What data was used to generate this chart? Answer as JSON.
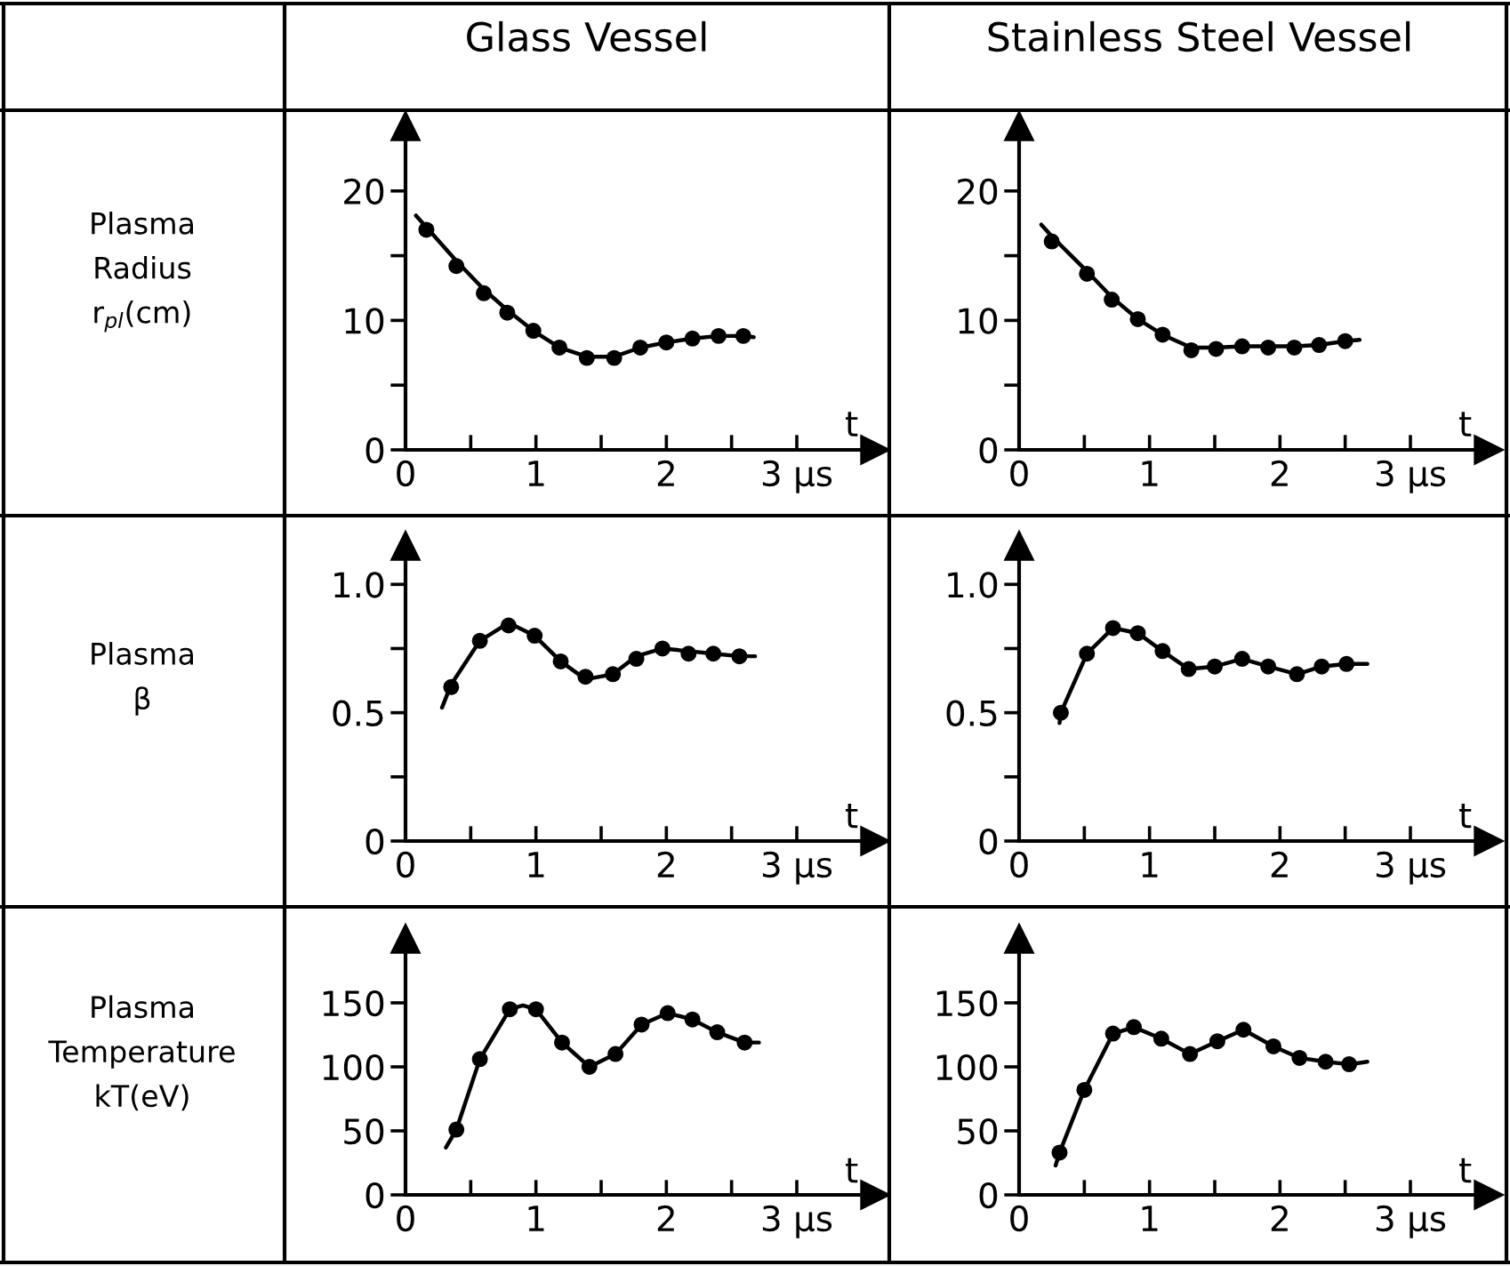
{
  "chart_data": [
    {
      "type": "line",
      "title": "Glass Vessel",
      "ylabel": "Plasma\nRadius\nr$_{pl}$(cm)",
      "xlabel": "t",
      "xlim": [
        0,
        3.6
      ],
      "xticks": [
        0,
        {
          "value": 0.5,
          "label": null
        },
        1,
        {
          "value": 1.5,
          "label": null
        },
        2,
        {
          "value": 2.5,
          "label": null
        },
        {
          "value": 3,
          "label": "3 μs"
        }
      ],
      "ylim": [
        0,
        25
      ],
      "yticks": [
        0,
        {
          "value": 5,
          "label": null
        },
        10,
        {
          "value": 15,
          "label": null
        },
        20
      ],
      "grid": false,
      "series": [
        {
          "type": "line",
          "color": "#000000",
          "marker": "none",
          "x": [
            0.08,
            0.16,
            0.39,
            0.6,
            0.78,
            0.98,
            1.18,
            1.39,
            1.6,
            1.8,
            2.0,
            2.2,
            2.4,
            2.59,
            2.67
          ],
          "values": [
            18.1,
            17.2,
            14.6,
            12.4,
            10.8,
            9.2,
            7.9,
            7.2,
            7.2,
            7.9,
            8.3,
            8.6,
            8.8,
            8.8,
            8.7
          ]
        },
        {
          "type": "scatter",
          "color": "#000000",
          "marker": "circle",
          "x": [
            0.16,
            0.39,
            0.6,
            0.78,
            0.98,
            1.18,
            1.39,
            1.6,
            1.8,
            2.0,
            2.2,
            2.4,
            2.59
          ],
          "values": [
            17.0,
            14.2,
            12.1,
            10.6,
            9.2,
            7.9,
            7.1,
            7.1,
            7.9,
            8.3,
            8.6,
            8.8,
            8.8
          ]
        }
      ]
    },
    {
      "type": "line",
      "title": "Stainless Steel Vessel",
      "xlabel": "t",
      "xlim": [
        0,
        3.6
      ],
      "xticks": [
        0,
        {
          "value": 0.5,
          "label": null
        },
        1,
        {
          "value": 1.5,
          "label": null
        },
        2,
        {
          "value": 2.5,
          "label": null
        },
        {
          "value": 3,
          "label": "3 μs"
        }
      ],
      "ylim": [
        0,
        25
      ],
      "yticks": [
        0,
        {
          "value": 5,
          "label": null
        },
        10,
        {
          "value": 15,
          "label": null
        },
        20
      ],
      "grid": false,
      "series": [
        {
          "type": "line",
          "color": "#000000",
          "marker": "none",
          "x": [
            0.17,
            0.25,
            0.52,
            0.71,
            0.91,
            1.1,
            1.32,
            1.51,
            1.71,
            1.91,
            2.11,
            2.3,
            2.5,
            2.61
          ],
          "values": [
            17.4,
            16.5,
            13.8,
            11.8,
            10.1,
            8.9,
            7.9,
            7.9,
            8.0,
            8.0,
            8.0,
            8.1,
            8.4,
            8.5
          ]
        },
        {
          "type": "scatter",
          "color": "#000000",
          "marker": "circle",
          "x": [
            0.25,
            0.52,
            0.71,
            0.91,
            1.1,
            1.32,
            1.51,
            1.71,
            1.91,
            2.11,
            2.3,
            2.5
          ],
          "values": [
            16.1,
            13.6,
            11.6,
            10.1,
            8.9,
            7.7,
            7.8,
            8.0,
            7.9,
            7.9,
            8.1,
            8.4
          ]
        }
      ]
    },
    {
      "type": "line",
      "ylabel": "Plasma\nβ",
      "xlabel": "t",
      "xlim": [
        0,
        3.6
      ],
      "xticks": [
        0,
        {
          "value": 0.5,
          "label": null
        },
        1,
        {
          "value": 1.5,
          "label": null
        },
        2,
        {
          "value": 2.5,
          "label": null
        },
        {
          "value": 3,
          "label": "3 μs"
        }
      ],
      "ylim": [
        0,
        1.15
      ],
      "yticks": [
        0,
        {
          "value": 0.25,
          "label": null
        },
        0.5,
        {
          "value": 0.75,
          "label": null
        },
        {
          "value": 1.0,
          "label": "1.0"
        }
      ],
      "grid": false,
      "series": [
        {
          "type": "line",
          "color": "#000000",
          "marker": "none",
          "x": [
            0.28,
            0.35,
            0.57,
            0.79,
            0.99,
            1.19,
            1.38,
            1.59,
            1.77,
            1.97,
            2.17,
            2.36,
            2.56,
            2.68
          ],
          "values": [
            0.52,
            0.61,
            0.78,
            0.85,
            0.8,
            0.7,
            0.63,
            0.65,
            0.72,
            0.75,
            0.74,
            0.73,
            0.72,
            0.72
          ]
        },
        {
          "type": "scatter",
          "color": "#000000",
          "marker": "circle",
          "x": [
            0.35,
            0.57,
            0.79,
            0.99,
            1.19,
            1.38,
            1.59,
            1.77,
            1.97,
            2.17,
            2.36,
            2.56
          ],
          "values": [
            0.6,
            0.78,
            0.84,
            0.8,
            0.7,
            0.64,
            0.65,
            0.71,
            0.75,
            0.73,
            0.73,
            0.72
          ]
        }
      ]
    },
    {
      "type": "line",
      "xlabel": "t",
      "xlim": [
        0,
        3.6
      ],
      "xticks": [
        0,
        {
          "value": 0.5,
          "label": null
        },
        1,
        {
          "value": 1.5,
          "label": null
        },
        2,
        {
          "value": 2.5,
          "label": null
        },
        {
          "value": 3,
          "label": "3 μs"
        }
      ],
      "ylim": [
        0,
        1.15
      ],
      "yticks": [
        0,
        {
          "value": 0.25,
          "label": null
        },
        0.5,
        {
          "value": 0.75,
          "label": null
        },
        {
          "value": 1.0,
          "label": "1.0"
        }
      ],
      "grid": false,
      "series": [
        {
          "type": "line",
          "color": "#000000",
          "marker": "none",
          "x": [
            0.31,
            0.32,
            0.52,
            0.72,
            0.91,
            1.1,
            1.3,
            1.5,
            1.71,
            1.91,
            2.13,
            2.32,
            2.51,
            2.67
          ],
          "values": [
            0.46,
            0.5,
            0.73,
            0.83,
            0.81,
            0.74,
            0.67,
            0.68,
            0.71,
            0.68,
            0.65,
            0.68,
            0.69,
            0.69
          ]
        },
        {
          "type": "scatter",
          "color": "#000000",
          "marker": "circle",
          "x": [
            0.32,
            0.52,
            0.72,
            0.91,
            1.1,
            1.3,
            1.5,
            1.71,
            1.91,
            2.13,
            2.32,
            2.51
          ],
          "values": [
            0.5,
            0.73,
            0.83,
            0.81,
            0.74,
            0.67,
            0.68,
            0.71,
            0.68,
            0.65,
            0.68,
            0.69
          ]
        }
      ]
    },
    {
      "type": "line",
      "ylabel": "Plasma\nTemperature\nkT(eV)",
      "xlabel": "t",
      "xlim": [
        0,
        3.6
      ],
      "xticks": [
        0,
        {
          "value": 0.5,
          "label": null
        },
        1,
        {
          "value": 1.5,
          "label": null
        },
        2,
        {
          "value": 2.5,
          "label": null
        },
        {
          "value": 3,
          "label": "3 μs"
        }
      ],
      "ylim": [
        0,
        200
      ],
      "yticks": [
        0,
        50,
        100,
        150
      ],
      "grid": false,
      "series": [
        {
          "type": "line",
          "color": "#000000",
          "marker": "none",
          "x": [
            0.31,
            0.39,
            0.57,
            0.8,
            0.9,
            1.0,
            1.2,
            1.41,
            1.61,
            1.81,
            2.01,
            2.2,
            2.39,
            2.6,
            2.71
          ],
          "values": [
            37,
            51,
            106,
            145,
            148,
            145,
            119,
            100,
            110,
            133,
            142,
            137,
            127,
            119,
            119
          ]
        },
        {
          "type": "scatter",
          "color": "#000000",
          "marker": "circle",
          "x": [
            0.39,
            0.57,
            0.8,
            1.0,
            1.2,
            1.41,
            1.61,
            1.81,
            2.01,
            2.2,
            2.39,
            2.6
          ],
          "values": [
            51,
            106,
            145,
            145,
            119,
            100,
            110,
            133,
            142,
            137,
            127,
            119
          ]
        }
      ]
    },
    {
      "type": "line",
      "xlabel": "t",
      "xlim": [
        0,
        3.6
      ],
      "xticks": [
        0,
        {
          "value": 0.5,
          "label": null
        },
        1,
        {
          "value": 1.5,
          "label": null
        },
        2,
        {
          "value": 2.5,
          "label": null
        },
        {
          "value": 3,
          "label": "3 μs"
        }
      ],
      "ylim": [
        0,
        200
      ],
      "yticks": [
        0,
        50,
        100,
        150
      ],
      "grid": false,
      "series": [
        {
          "type": "line",
          "color": "#000000",
          "marker": "none",
          "x": [
            0.28,
            0.31,
            0.5,
            0.72,
            0.88,
            1.09,
            1.31,
            1.52,
            1.72,
            1.95,
            2.15,
            2.35,
            2.53,
            2.67
          ],
          "values": [
            23,
            33,
            82,
            126,
            131,
            122,
            110,
            120,
            129,
            116,
            107,
            104,
            102,
            104
          ]
        },
        {
          "type": "scatter",
          "color": "#000000",
          "marker": "circle",
          "x": [
            0.31,
            0.5,
            0.72,
            0.88,
            1.09,
            1.31,
            1.52,
            1.72,
            1.95,
            2.15,
            2.35,
            2.53
          ],
          "values": [
            33,
            82,
            126,
            131,
            122,
            110,
            120,
            129,
            116,
            107,
            104,
            102
          ]
        }
      ]
    }
  ]
}
